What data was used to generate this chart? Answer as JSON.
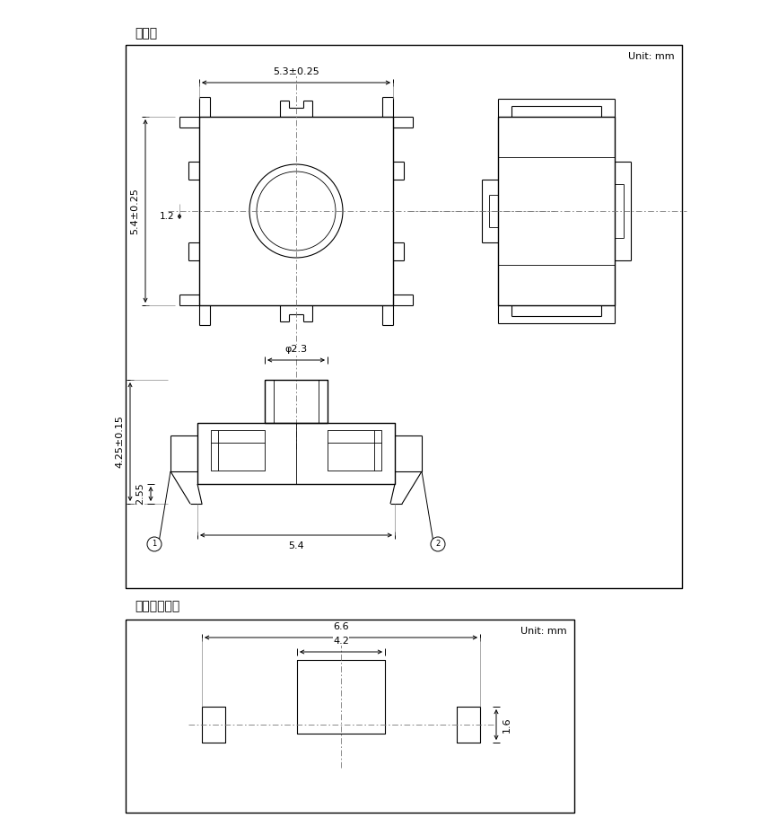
{
  "title1": "外形图",
  "title2": "焊接处尺寸图",
  "unit": "Unit: mm",
  "bg_color": "#ffffff",
  "line_color": "#000000",
  "font_size_title": 10,
  "font_size_dim": 8,
  "font_size_unit": 8,
  "dims": {
    "top_width": "5.3±0.25",
    "side_height": "5.4±0.25",
    "stem_dim": "1.2",
    "circle_dia": "φ2.3",
    "front_height": "4.25±0.15",
    "front_height2": "2.55",
    "front_width": "5.4",
    "weld_width1": "6.6",
    "weld_width2": "4.2",
    "weld_height": "1.6"
  }
}
